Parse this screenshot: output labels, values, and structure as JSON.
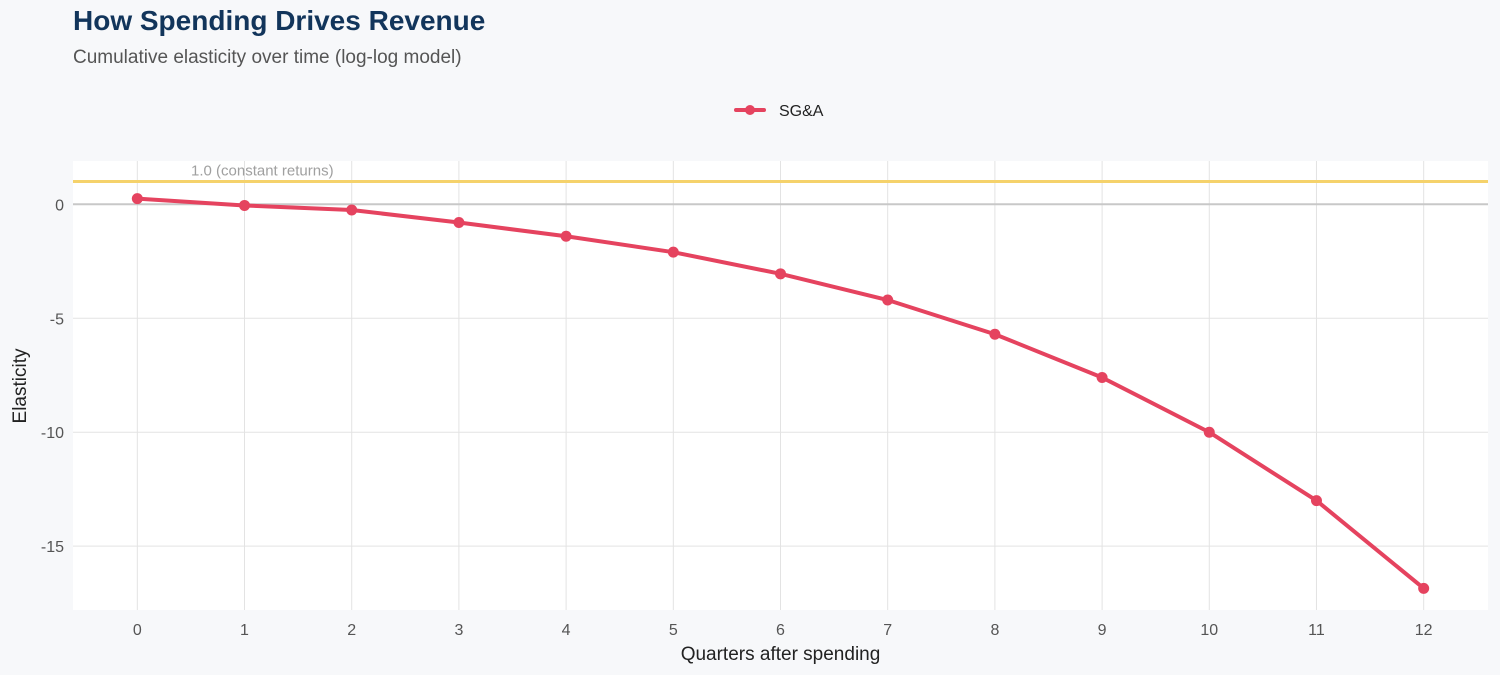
{
  "header": {
    "title": "How Spending Drives Revenue",
    "subtitle": "Cumulative elasticity over time (log-log model)"
  },
  "colors": {
    "series": "#e5435f",
    "reference_line": "#f5d26b",
    "zero_line": "#c8c8c8",
    "grid": "#e3e3e3",
    "panel": "#ffffff"
  },
  "chart_data": {
    "type": "line",
    "title": "How Spending Drives Revenue",
    "subtitle": "Cumulative elasticity over time (log-log model)",
    "xlabel": "Quarters after spending",
    "ylabel": "Elasticity",
    "x": [
      0,
      1,
      2,
      3,
      4,
      5,
      6,
      7,
      8,
      9,
      10,
      11,
      12
    ],
    "x_ticks": [
      "0",
      "1",
      "2",
      "3",
      "4",
      "5",
      "6",
      "7",
      "8",
      "9",
      "10",
      "11",
      "12"
    ],
    "y_ticks": [
      0,
      -5,
      -10,
      -15
    ],
    "y_tick_labels": [
      "0",
      "-5",
      "-10",
      "-15"
    ],
    "xlim": [
      -0.6,
      12.6
    ],
    "ylim": [
      -17.8,
      1.9
    ],
    "grid": true,
    "legend_position": "top",
    "series": [
      {
        "name": "SG&A",
        "values": [
          0.25,
          -0.05,
          -0.25,
          -0.8,
          -1.4,
          -2.1,
          -3.05,
          -4.2,
          -5.7,
          -7.6,
          -10.0,
          -13.0,
          -16.85
        ]
      }
    ],
    "reference_lines": [
      {
        "y": 1.0,
        "label": "1.0 (constant returns)"
      }
    ]
  }
}
